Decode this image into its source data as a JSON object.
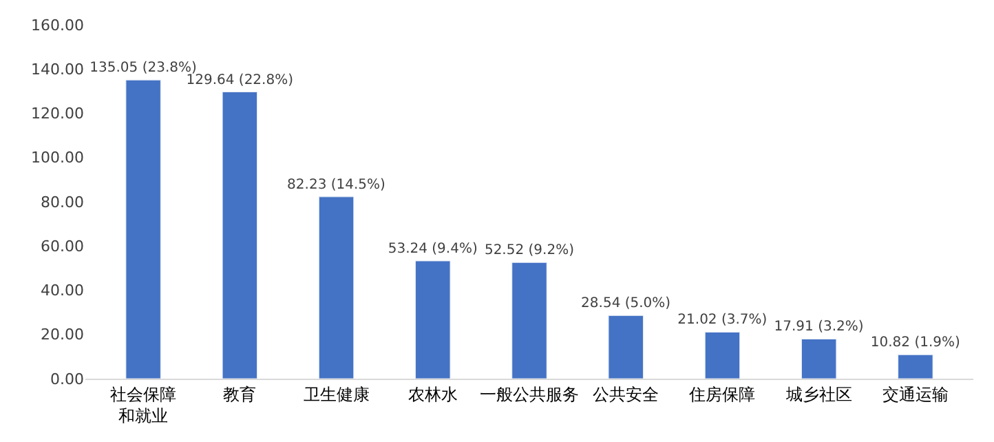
{
  "chart_data": {
    "type": "bar",
    "categories": [
      "社会保障和就业",
      "教育",
      "卫生健康",
      "农林水",
      "一般公共服务",
      "公共安全",
      "住房保障",
      "城乡社区",
      "交通运输"
    ],
    "values": [
      135.05,
      129.64,
      82.23,
      53.24,
      52.52,
      28.54,
      21.02,
      17.91,
      10.82
    ],
    "value_labels": [
      "135.05 (23.8%)",
      "129.64 (22.8%)",
      "82.23 (14.5%)",
      "53.24 (9.4%)",
      "52.52 (9.2%)",
      "28.54 (5.0%)",
      "21.02 (3.7%)",
      "17.91 (3.2%)",
      "10.82 (1.9%)"
    ],
    "color": "#4472c4",
    "ylim": [
      0,
      160
    ],
    "yticks": [
      {
        "value": 0,
        "label": "0.00"
      },
      {
        "value": 20,
        "label": "20.00"
      },
      {
        "value": 40,
        "label": "40.00"
      },
      {
        "value": 60,
        "label": "60.00"
      },
      {
        "value": 80,
        "label": "80.00"
      },
      {
        "value": 100,
        "label": "100.00"
      },
      {
        "value": 120,
        "label": "120.00"
      },
      {
        "value": 140,
        "label": "140.00"
      },
      {
        "value": 160,
        "label": "160.00"
      }
    ],
    "legend": false
  }
}
